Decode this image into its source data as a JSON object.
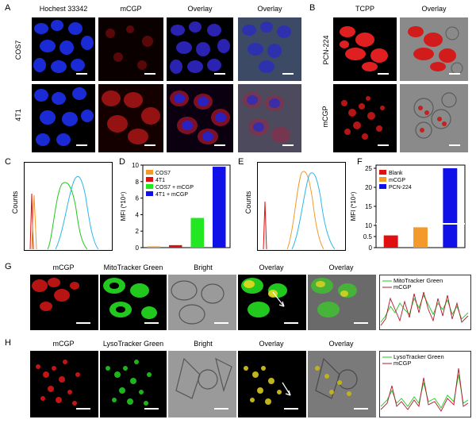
{
  "panels": {
    "A": {
      "label": "A",
      "columns": [
        "Hochest 33342",
        "mCGP",
        "Overlay",
        "Overlay"
      ],
      "rows": [
        "COS7",
        "4T1"
      ]
    },
    "B": {
      "label": "B",
      "columns": [
        "TCPP",
        "Overlay"
      ],
      "rows": [
        "PCN-224",
        "mCGP"
      ]
    },
    "C": {
      "label": "C",
      "ylabel": "Counts"
    },
    "D": {
      "label": "D"
    },
    "E": {
      "label": "E",
      "ylabel": "Counts"
    },
    "F": {
      "label": "F"
    },
    "G": {
      "label": "G",
      "columns": [
        "mCGP",
        "MitoTracker Green",
        "Bright",
        "Overlay",
        "Overlay"
      ],
      "legend": [
        "MitoTracker Green",
        "mCGP"
      ]
    },
    "H": {
      "label": "H",
      "columns": [
        "mCGP",
        "LysoTracker  Green",
        "Bright",
        "Overlay",
        "Overlay"
      ],
      "legend": [
        "LysoTracker Green",
        "mCGP"
      ]
    }
  },
  "colors": {
    "hoechst": "#1a2bd6",
    "mcgp": "#d81818",
    "green": "#22c81e",
    "orange": "#f39a2a",
    "blue": "#1010e0",
    "cyan": "#2ab8e8",
    "grayBright": "#8a8a8a"
  },
  "chart_data": [
    {
      "panel": "D",
      "type": "bar",
      "ylabel": "MFI (*10⁴)",
      "ylim": [
        0,
        10
      ],
      "yticks": [
        0,
        2,
        4,
        6,
        8,
        10
      ],
      "categories": [
        "COS7",
        "4T1",
        "COS7 + mCGP",
        "4T1 + mCGP"
      ],
      "values": [
        0.15,
        0.3,
        3.6,
        9.8
      ],
      "colors": [
        "#f39a2a",
        "#e01010",
        "#22e822",
        "#1010e8"
      ],
      "legend_position": "top-left"
    },
    {
      "panel": "F",
      "type": "bar",
      "ylabel": "MFI (*10⁴)",
      "yticks": [
        "0",
        "0.5",
        "10",
        "15",
        "20",
        "25"
      ],
      "categories": [
        "Blank",
        "mCGP",
        "PCN-224"
      ],
      "values": [
        0.55,
        9.5,
        25
      ],
      "colors": [
        "#e01010",
        "#f39a2a",
        "#1010e8"
      ],
      "legend_position": "top-left"
    },
    {
      "panel": "C",
      "type": "line",
      "ylabel": "Counts",
      "series_colors": [
        "#e01010",
        "#f39a2a",
        "#22c81e",
        "#2ab8e8"
      ]
    },
    {
      "panel": "E",
      "type": "line",
      "ylabel": "Counts",
      "series_colors": [
        "#e01010",
        "#f39a2a",
        "#2ab8e8"
      ]
    }
  ]
}
